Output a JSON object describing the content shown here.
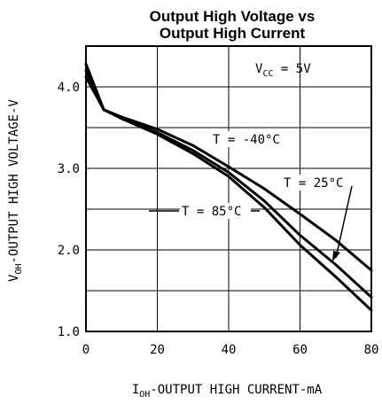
{
  "chart_data": {
    "type": "line",
    "title": "Output High Voltage vs Output High Current",
    "title_lines": [
      "Output High Voltage vs",
      "Output High Current"
    ],
    "xlabel": {
      "prefix": "I",
      "sub": "OH",
      "rest": "-OUTPUT HIGH CURRENT-mA"
    },
    "ylabel": {
      "prefix": "V",
      "sub": "OH",
      "rest": "-OUTPUT HIGH VOLTAGE-V"
    },
    "xlim": [
      0,
      80
    ],
    "ylim": [
      1.0,
      4.5
    ],
    "xticks": [
      0,
      20,
      40,
      60,
      80
    ],
    "xtick_labels": [
      "0",
      "20",
      "40",
      "60",
      "80"
    ],
    "yticks": [
      1.0,
      2.0,
      3.0,
      4.0
    ],
    "ytick_labels": [
      "1.0",
      "2.0",
      "3.0",
      "4.0"
    ],
    "grid": true,
    "series_color": "#000000",
    "series": [
      {
        "name": "T = -40°C",
        "x": [
          0,
          5,
          10,
          20,
          30,
          40,
          50,
          60,
          70,
          80
        ],
        "y": [
          4.28,
          3.72,
          3.63,
          3.48,
          3.28,
          3.02,
          2.75,
          2.44,
          2.12,
          1.75
        ]
      },
      {
        "name": "T = 25°C",
        "x": [
          0,
          5,
          10,
          20,
          30,
          40,
          50,
          60,
          70,
          80
        ],
        "y": [
          4.2,
          3.72,
          3.62,
          3.44,
          3.22,
          2.95,
          2.6,
          2.18,
          1.82,
          1.42
        ]
      },
      {
        "name": "T = 85°C",
        "x": [
          0,
          5,
          10,
          20,
          30,
          40,
          50,
          60,
          70,
          80
        ],
        "y": [
          4.12,
          3.72,
          3.61,
          3.42,
          3.18,
          2.9,
          2.52,
          2.06,
          1.67,
          1.26
        ]
      }
    ],
    "annotations": {
      "vcc": {
        "prefix": "V",
        "sub": "CC",
        "rest": " = 5V"
      },
      "labels": [
        "T = -40°C",
        "T = 25°C",
        "T = 85°C"
      ]
    }
  }
}
